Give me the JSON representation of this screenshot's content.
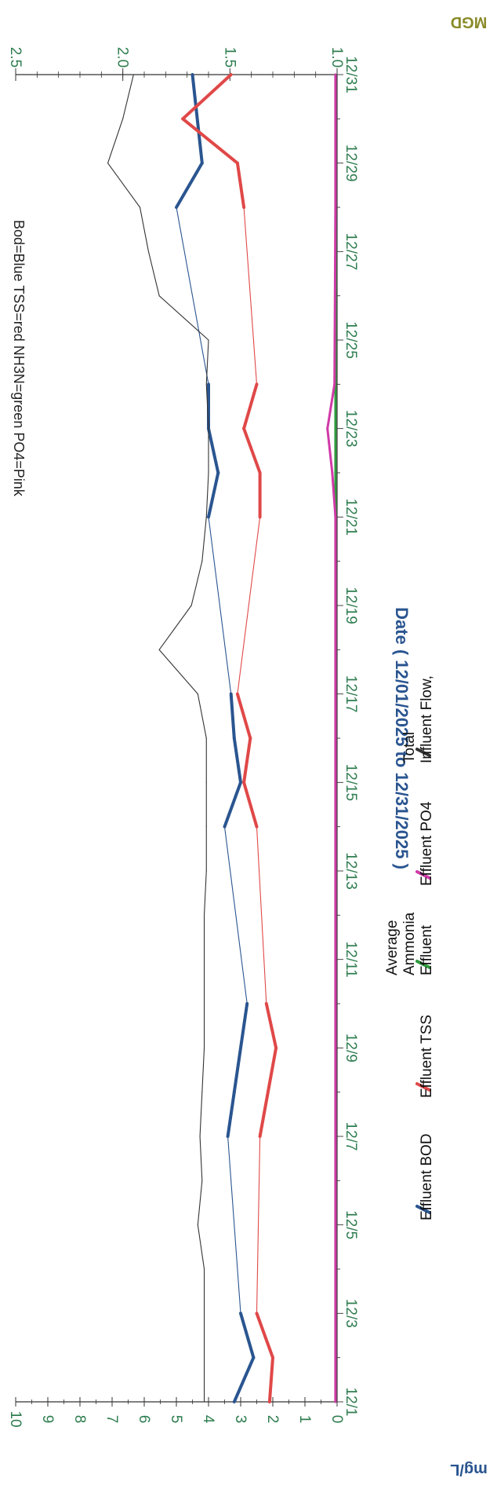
{
  "chart_data": {
    "type": "line",
    "title": "Bod=Blue TSS=red NH3N=green PO4=Pink",
    "xlabel": "Date ( 12/01/2025 to 12/31/2025 )",
    "ylabel": "mg/L",
    "y2label": "MGD",
    "ylim": [
      0,
      10
    ],
    "y2lim": [
      1.0,
      2.5
    ],
    "x_ticks": [
      "12/1",
      "12/3",
      "12/5",
      "12/7",
      "12/9",
      "12/11",
      "12/13",
      "12/15",
      "12/17",
      "12/19",
      "12/21",
      "12/23",
      "12/25",
      "12/27",
      "12/29",
      "12/31"
    ],
    "y_ticks": [
      0,
      1,
      2,
      3,
      4,
      5,
      6,
      7,
      8,
      9,
      10
    ],
    "y2_ticks": [
      1.0,
      1.5,
      2.0,
      2.5
    ],
    "rotated": "90deg-clockwise",
    "legend_position": "bottom",
    "series": [
      {
        "name": "Effluent BOD",
        "color": "#2a5590",
        "axis": "left",
        "points": [
          [
            1,
            3.2
          ],
          [
            2,
            2.6
          ],
          [
            3,
            3.0
          ],
          [
            7,
            3.4
          ],
          [
            8,
            3.2
          ],
          [
            10,
            2.8
          ],
          [
            14,
            3.5
          ],
          [
            15,
            3.0
          ],
          [
            16,
            3.2
          ],
          [
            17,
            3.3
          ],
          [
            21,
            4.0
          ],
          [
            22,
            3.7
          ],
          [
            23,
            4.0
          ],
          [
            24,
            4.0
          ],
          [
            28,
            5.0
          ],
          [
            29,
            4.2
          ],
          [
            31,
            4.5
          ]
        ],
        "bold_segments": [
          [
            1,
            3
          ],
          [
            7,
            10
          ],
          [
            14,
            17
          ],
          [
            21,
            24
          ],
          [
            28,
            31
          ]
        ]
      },
      {
        "name": "Effluent TSS",
        "color": "#e04848",
        "axis": "left",
        "points": [
          [
            1,
            2.1
          ],
          [
            2,
            2.0
          ],
          [
            3,
            2.5
          ],
          [
            7,
            2.4
          ],
          [
            9,
            1.9
          ],
          [
            10,
            2.2
          ],
          [
            14,
            2.5
          ],
          [
            15,
            2.9
          ],
          [
            16,
            2.7
          ],
          [
            17,
            3.1
          ],
          [
            21,
            2.4
          ],
          [
            22,
            2.4
          ],
          [
            23,
            2.9
          ],
          [
            24,
            2.5
          ],
          [
            28,
            2.9
          ],
          [
            29,
            3.1
          ],
          [
            30,
            4.8
          ],
          [
            31,
            3.3
          ]
        ],
        "bold_segments": [
          [
            1,
            3
          ],
          [
            7,
            10
          ],
          [
            14,
            17
          ],
          [
            21,
            24
          ],
          [
            28,
            31
          ]
        ]
      },
      {
        "name": "Effluent Ammonia Average",
        "color": "#2e9a3c",
        "axis": "left",
        "points": [
          [
            1,
            0.05
          ],
          [
            3,
            0.05
          ],
          [
            7,
            0.05
          ],
          [
            10,
            0.05
          ],
          [
            14,
            0.05
          ],
          [
            17,
            0.05
          ],
          [
            21,
            0.05
          ],
          [
            24,
            0.05
          ],
          [
            28,
            0.05
          ],
          [
            31,
            0.05
          ]
        ]
      },
      {
        "name": "Effluent PO4",
        "color": "#d03aa8",
        "axis": "left",
        "points": [
          [
            1,
            0.05
          ],
          [
            3,
            0.05
          ],
          [
            7,
            0.05
          ],
          [
            10,
            0.05
          ],
          [
            14,
            0.05
          ],
          [
            17,
            0.05
          ],
          [
            21,
            0.05
          ],
          [
            22,
            0.15
          ],
          [
            23,
            0.3
          ],
          [
            24,
            0.08
          ],
          [
            28,
            0.05
          ],
          [
            31,
            0.05
          ]
        ]
      },
      {
        "name": "Influent Flow, Total",
        "color": "#333333",
        "axis": "right",
        "points": [
          [
            1,
            1.62
          ],
          [
            2,
            1.62
          ],
          [
            3,
            1.62
          ],
          [
            4,
            1.62
          ],
          [
            5,
            1.65
          ],
          [
            6,
            1.63
          ],
          [
            7,
            1.64
          ],
          [
            8,
            1.63
          ],
          [
            9,
            1.62
          ],
          [
            10,
            1.62
          ],
          [
            11,
            1.62
          ],
          [
            12,
            1.62
          ],
          [
            13,
            1.61
          ],
          [
            14,
            1.61
          ],
          [
            15,
            1.61
          ],
          [
            16,
            1.61
          ],
          [
            17,
            1.65
          ],
          [
            18,
            1.83
          ],
          [
            19,
            1.68
          ],
          [
            20,
            1.63
          ],
          [
            21,
            1.61
          ],
          [
            22,
            1.6
          ],
          [
            23,
            1.6
          ],
          [
            24,
            1.61
          ],
          [
            25,
            1.6
          ],
          [
            26,
            1.83
          ],
          [
            27,
            1.88
          ],
          [
            28,
            1.92
          ],
          [
            29,
            2.07
          ],
          [
            30,
            2.0
          ],
          [
            31,
            1.95
          ]
        ]
      }
    ]
  }
}
